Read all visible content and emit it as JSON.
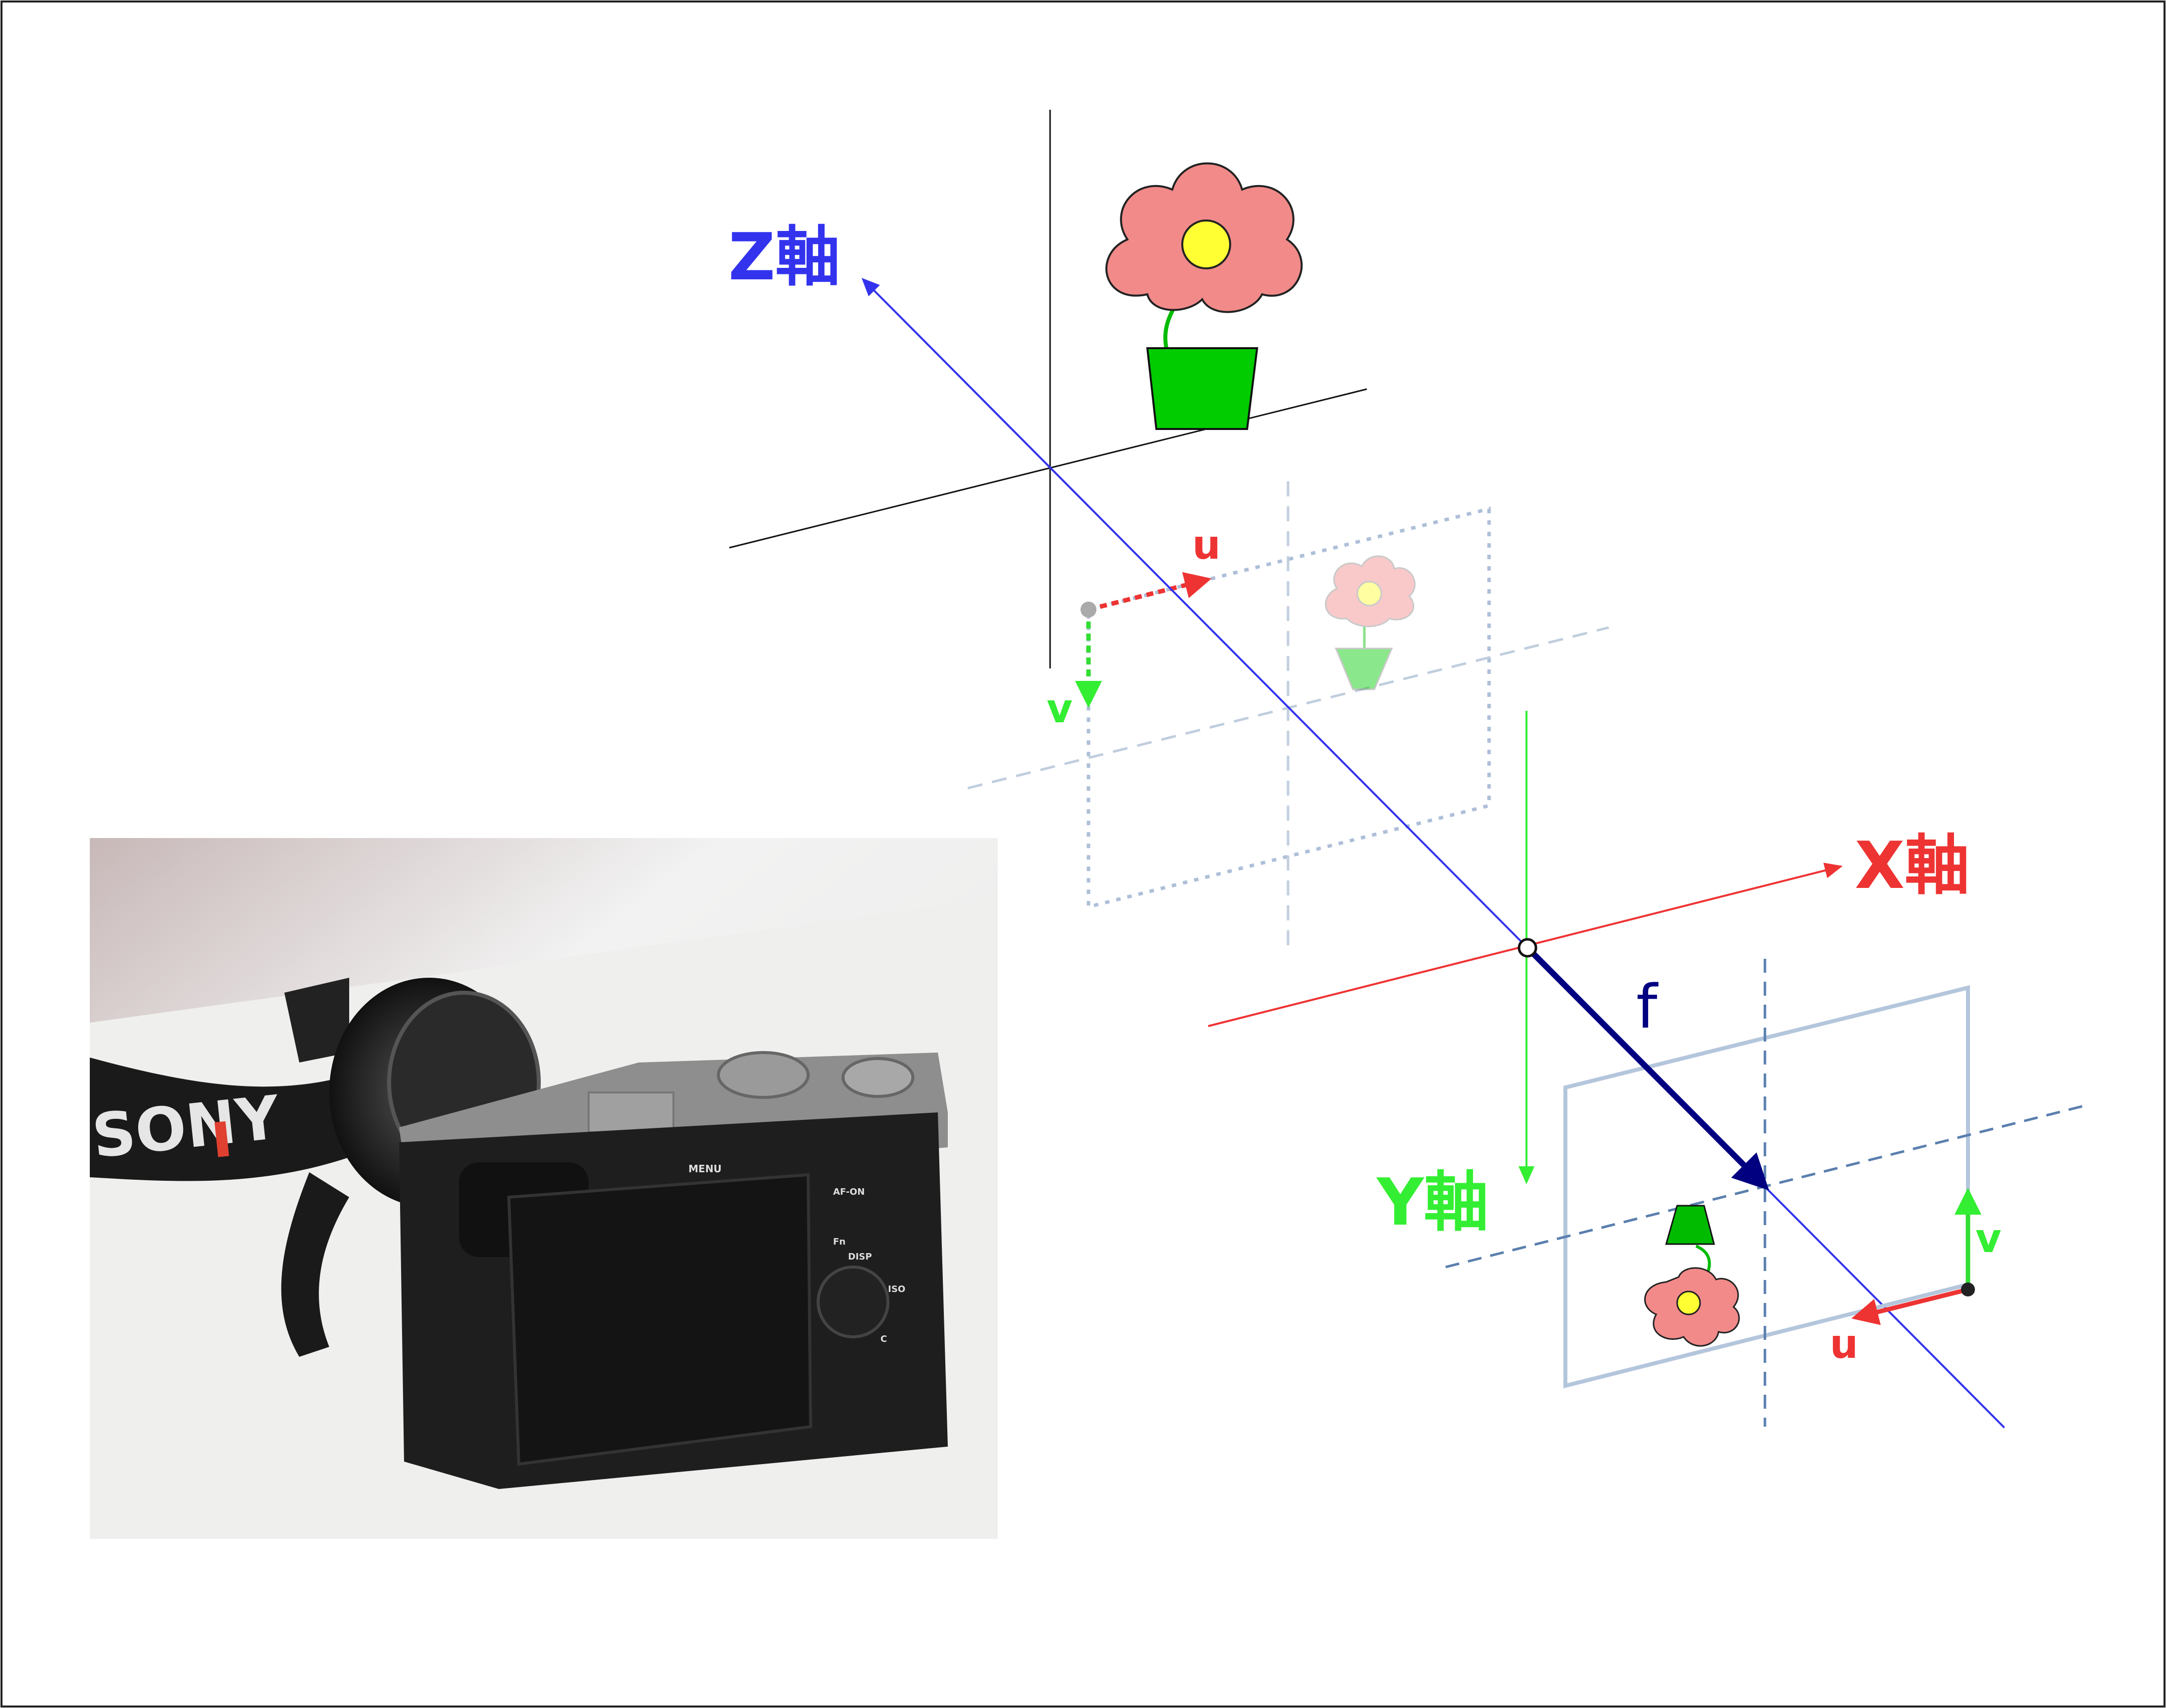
{
  "labels": {
    "z_axis": "Z軸",
    "x_axis": "X軸",
    "y_axis": "Y軸",
    "focal_length": "f",
    "u_front": "u",
    "v_front": "v",
    "u_sensor": "u",
    "v_sensor": "v"
  },
  "camera_photo": {
    "brand_text": "SONY",
    "buttons": [
      "MENU",
      "AF-ON",
      "Fn",
      "DISP",
      "ISO",
      "C"
    ]
  },
  "colors": {
    "z_axis": "#3333ee",
    "x_axis": "#ee3333",
    "y_axis": "#33ee33",
    "focal": "#000080",
    "plane": "#b4c6dc",
    "flower_petal": "#f28a8a",
    "flower_center": "#ffff33",
    "pot": "#00cc00"
  },
  "icons": [
    "flower-icon",
    "pot-icon",
    "camera-photo"
  ]
}
